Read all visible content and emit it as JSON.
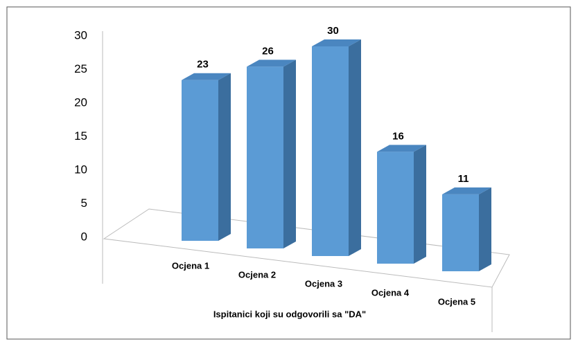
{
  "chart_data": {
    "type": "bar3d",
    "categories": [
      "Ocjena 1",
      "Ocjena 2",
      "Ocjena 3",
      "Ocjena 4",
      "Ocjena 5"
    ],
    "values": [
      23,
      26,
      30,
      16,
      11
    ],
    "color": "#5b9bd5",
    "xlabel": "Ispitanici koji su odgovorili sa \"DA\"",
    "ylim": [
      0,
      30
    ],
    "yticks": [
      0,
      5,
      10,
      15,
      20,
      25,
      30
    ],
    "grid": false
  }
}
